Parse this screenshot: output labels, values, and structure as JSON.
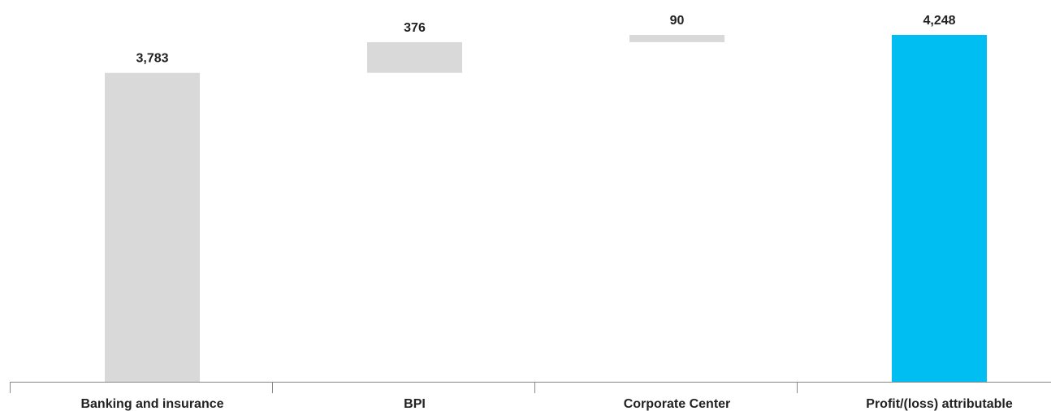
{
  "chart_data": {
    "type": "bar",
    "subtype": "waterfall",
    "title": "",
    "xlabel": "",
    "ylabel": "",
    "categories": [
      "Banking and insurance",
      "BPI",
      "Corporate Center",
      "Profit/(loss) attributable"
    ],
    "values": [
      3783,
      376,
      90,
      4248
    ],
    "value_labels": [
      "3,783",
      "376",
      "90",
      "4,248"
    ],
    "steps": [
      {
        "category": "Banking and insurance",
        "start": 0,
        "end": 3783,
        "kind": "base"
      },
      {
        "category": "BPI",
        "start": 3783,
        "end": 4159,
        "kind": "increment"
      },
      {
        "category": "Corporate Center",
        "start": 4159,
        "end": 4248,
        "kind": "increment"
      },
      {
        "category": "Profit/(loss) attributable",
        "start": 0,
        "end": 4248,
        "kind": "total"
      }
    ],
    "ylim": [
      0,
      4248
    ],
    "grid": false,
    "legend": "none",
    "colors": {
      "base": "#d9d9d9",
      "increment": "#d9d9d9",
      "total": "#00bef2",
      "text": "#222222",
      "axis": "#888888"
    }
  }
}
